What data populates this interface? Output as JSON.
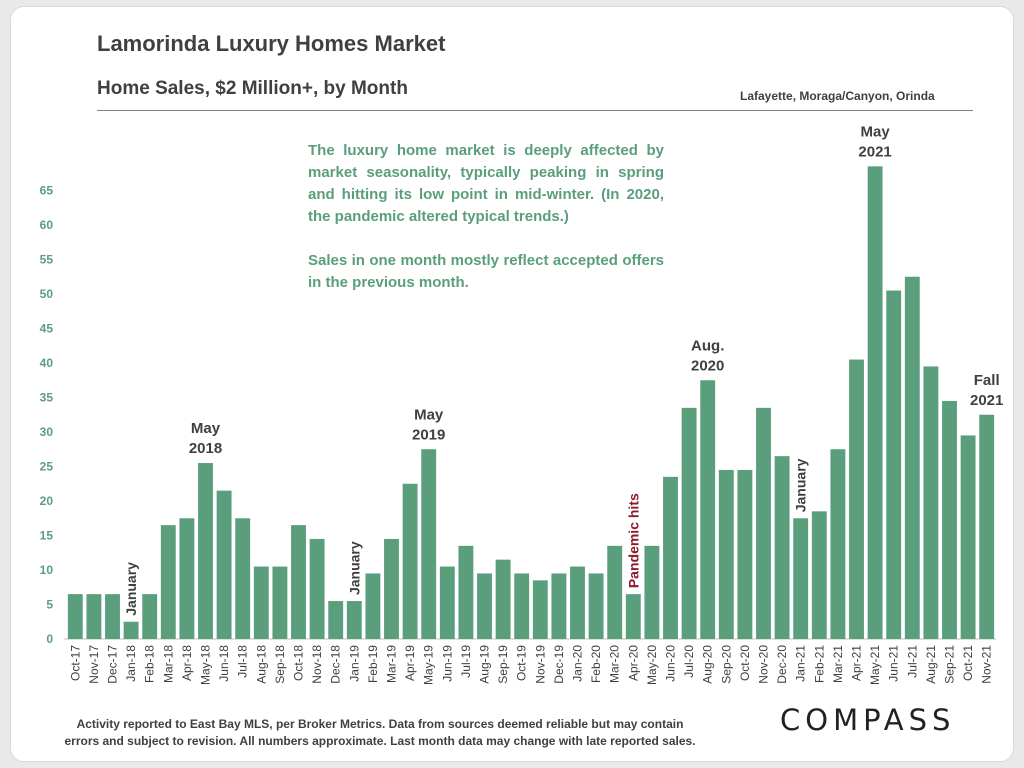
{
  "title": "Lamorinda Luxury Homes Market",
  "subtitle": "Home Sales, $2 Million+, by Month",
  "region": "Lafayette, Moraga/Canyon, Orinda",
  "note": {
    "p1": "The luxury home market is deeply affected by market seasonality, typically peaking in spring and hitting its low point in mid-winter. (In 2020, the pandemic altered typical trends.)",
    "p2": "Sales in one month mostly reflect accepted offers in the previous month."
  },
  "footer": {
    "line1": "Activity reported to East Bay MLS, per Broker Metrics. Data from sources deemed reliable but may contain",
    "line2": "errors and subject to revision. All numbers approximate. Last month data may change with late reported sales."
  },
  "logo": "COMPASS",
  "colors": {
    "bar": "#5a9e7c",
    "note": "#5a9e7c",
    "pandemic": "#8b1c2c",
    "text": "#404040"
  },
  "chart_data": {
    "type": "bar",
    "title": "Home Sales, $2 Million+, by Month",
    "xlabel": "",
    "ylabel": "",
    "ylim": [
      0,
      70
    ],
    "yticks": [
      0,
      5,
      10,
      15,
      20,
      25,
      30,
      35,
      40,
      45,
      50,
      55,
      60,
      65
    ],
    "grid": false,
    "categories": [
      "Oct-17",
      "Nov-17",
      "Dec-17",
      "Jan-18",
      "Feb-18",
      "Mar-18",
      "Apr-18",
      "May-18",
      "Jun-18",
      "Jul-18",
      "Aug-18",
      "Sep-18",
      "Oct-18",
      "Nov-18",
      "Dec-18",
      "Jan-19",
      "Feb-19",
      "Mar-19",
      "Apr-19",
      "May-19",
      "Jun-19",
      "Jul-19",
      "Aug-19",
      "Sep-19",
      "Oct-19",
      "Nov-19",
      "Dec-19",
      "Jan-20",
      "Feb-20",
      "Mar-20",
      "Apr-20",
      "May-20",
      "Jun-20",
      "Jul-20",
      "Aug-20",
      "Sep-20",
      "Oct-20",
      "Nov-20",
      "Dec-20",
      "Jan-21",
      "Feb-21",
      "Mar-21",
      "Apr-21",
      "May-21",
      "Jun-21",
      "Jul-21",
      "Aug-21",
      "Sep-21",
      "Oct-21",
      "Nov-21"
    ],
    "values": [
      6.5,
      6.5,
      6.5,
      2.5,
      6.5,
      16.5,
      17.5,
      25.5,
      21.5,
      17.5,
      10.5,
      10.5,
      16.5,
      14.5,
      5.5,
      5.5,
      9.5,
      14.5,
      22.5,
      27.5,
      10.5,
      13.5,
      9.5,
      11.5,
      9.5,
      8.5,
      9.5,
      10.5,
      9.5,
      13.5,
      6.5,
      13.5,
      23.5,
      33.5,
      37.5,
      24.5,
      24.5,
      33.5,
      26.5,
      17.5,
      18.5,
      27.5,
      40.5,
      68.5,
      50.5,
      52.5,
      39.5,
      34.5,
      29.5,
      32.5
    ],
    "annotations": [
      {
        "text": "January",
        "index": 3,
        "vertical": true
      },
      {
        "text": "May 2018",
        "index": 7,
        "lines": [
          "May",
          "2018"
        ]
      },
      {
        "text": "January",
        "index": 15,
        "vertical": true
      },
      {
        "text": "May 2019",
        "index": 19,
        "lines": [
          "May",
          "2019"
        ]
      },
      {
        "text": "Pandemic hits",
        "index": 30,
        "vertical": true,
        "highlight": true
      },
      {
        "text": "Aug. 2020",
        "index": 34,
        "lines": [
          "Aug.",
          "2020"
        ]
      },
      {
        "text": "January",
        "index": 39,
        "vertical": true
      },
      {
        "text": "May 2021",
        "index": 43,
        "lines": [
          "May",
          "2021"
        ]
      },
      {
        "text": "Fall 2021",
        "index": 49,
        "lines": [
          "Fall",
          "2021"
        ]
      }
    ]
  }
}
